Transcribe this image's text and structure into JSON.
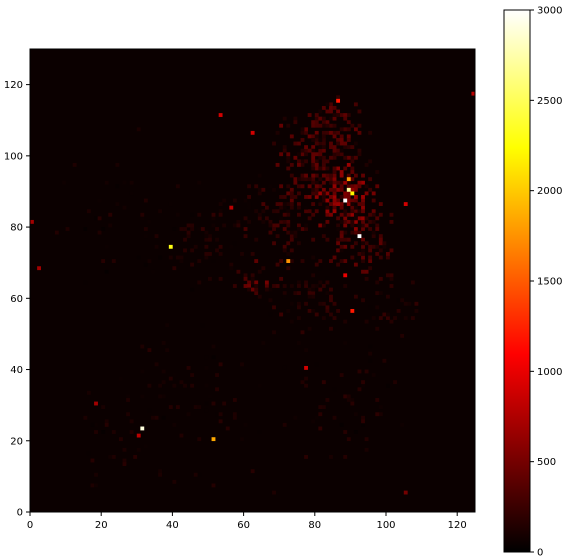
{
  "chart_data": {
    "type": "heatmap",
    "title": "",
    "xlabel": "",
    "ylabel": "",
    "xlim": [
      0,
      125
    ],
    "ylim": [
      0,
      130
    ],
    "x_ticks": [
      "0",
      "20",
      "40",
      "60",
      "80",
      "100",
      "120"
    ],
    "y_ticks": [
      "0",
      "20",
      "40",
      "60",
      "80",
      "100",
      "120"
    ],
    "colormap": "hot",
    "background_value": 0,
    "colorbar": {
      "min": 0,
      "max": 3000,
      "ticks": [
        "0",
        "500",
        "1000",
        "1500",
        "2000",
        "2500",
        "3000"
      ],
      "colors": [
        "#000000",
        "#ff0000",
        "#ffff00",
        "#ffffff"
      ]
    },
    "hotspots": [
      {
        "x": 31,
        "y": 23,
        "value": 2900
      },
      {
        "x": 39,
        "y": 74,
        "value": 2300
      },
      {
        "x": 51,
        "y": 20,
        "value": 1850
      },
      {
        "x": 72,
        "y": 70,
        "value": 1750
      },
      {
        "x": 92,
        "y": 77,
        "value": 3000
      },
      {
        "x": 88,
        "y": 87,
        "value": 3000
      },
      {
        "x": 89,
        "y": 90,
        "value": 2700
      },
      {
        "x": 89,
        "y": 93,
        "value": 1800
      },
      {
        "x": 90,
        "y": 89,
        "value": 2200
      },
      {
        "x": 86,
        "y": 115,
        "value": 1200
      },
      {
        "x": 90,
        "y": 56,
        "value": 1200
      },
      {
        "x": 88,
        "y": 66,
        "value": 1000
      },
      {
        "x": 77,
        "y": 40,
        "value": 900
      },
      {
        "x": 30,
        "y": 21,
        "value": 800
      },
      {
        "x": 124,
        "y": 117,
        "value": 800
      },
      {
        "x": 0,
        "y": 81,
        "value": 700
      },
      {
        "x": 2,
        "y": 68,
        "value": 700
      },
      {
        "x": 56,
        "y": 85,
        "value": 800
      },
      {
        "x": 62,
        "y": 106,
        "value": 900
      },
      {
        "x": 53,
        "y": 111,
        "value": 900
      },
      {
        "x": 105,
        "y": 86,
        "value": 900
      },
      {
        "x": 105,
        "y": 5,
        "value": 500
      },
      {
        "x": 18,
        "y": 30,
        "value": 700
      }
    ],
    "clusters": [
      {
        "x": 87,
        "y": 88,
        "spread": 9,
        "density": 0.75,
        "value": 520
      },
      {
        "x": 82,
        "y": 98,
        "spread": 14,
        "density": 0.55,
        "value": 330
      },
      {
        "x": 92,
        "y": 78,
        "spread": 10,
        "density": 0.55,
        "value": 330
      },
      {
        "x": 70,
        "y": 82,
        "spread": 11,
        "density": 0.35,
        "value": 240
      },
      {
        "x": 78,
        "y": 60,
        "spread": 12,
        "density": 0.25,
        "value": 200
      },
      {
        "x": 62,
        "y": 64,
        "spread": 6,
        "density": 0.4,
        "value": 380
      },
      {
        "x": 85,
        "y": 110,
        "spread": 6,
        "density": 0.5,
        "value": 330
      },
      {
        "x": 100,
        "y": 60,
        "spread": 10,
        "density": 0.18,
        "value": 180
      },
      {
        "x": 50,
        "y": 75,
        "spread": 16,
        "density": 0.12,
        "value": 160
      },
      {
        "x": 25,
        "y": 80,
        "spread": 20,
        "density": 0.05,
        "value": 130
      },
      {
        "x": 45,
        "y": 30,
        "spread": 25,
        "density": 0.06,
        "value": 130
      },
      {
        "x": 90,
        "y": 30,
        "spread": 18,
        "density": 0.08,
        "value": 150
      },
      {
        "x": 20,
        "y": 20,
        "spread": 14,
        "density": 0.05,
        "value": 130
      }
    ]
  }
}
